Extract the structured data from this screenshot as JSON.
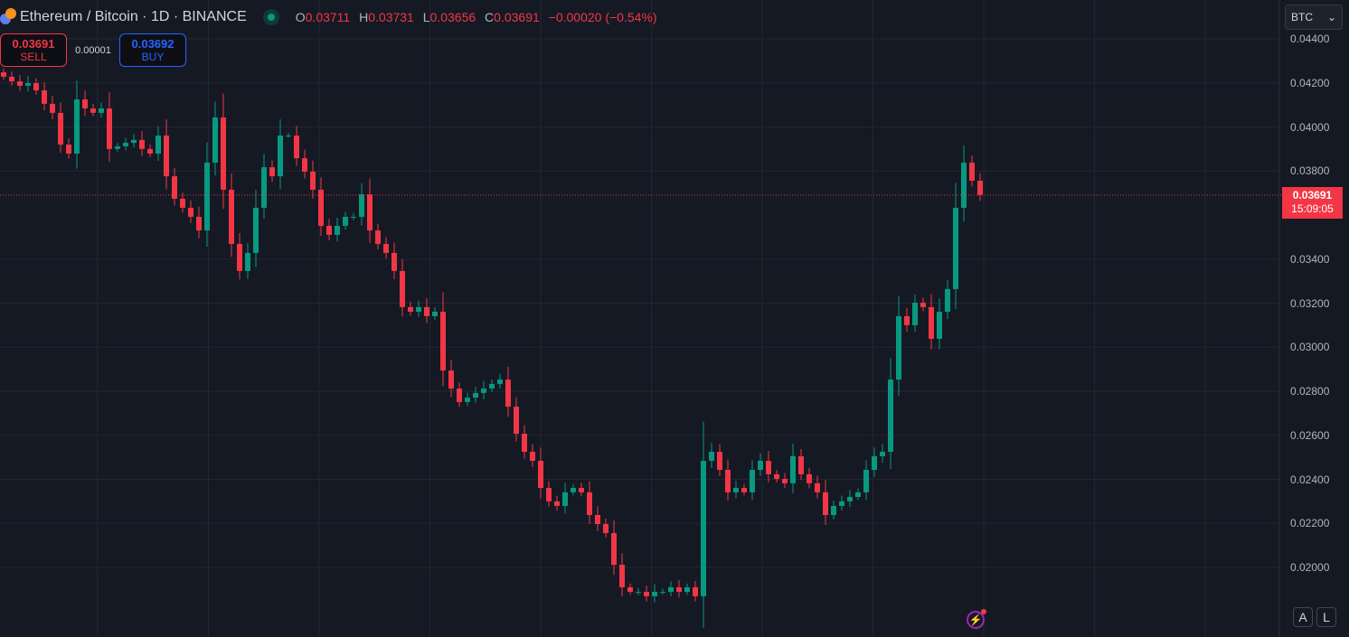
{
  "header": {
    "symbol_title": "Ethereum / Bitcoin · 1D · BINANCE",
    "ohlc": [
      {
        "label": "O",
        "value": "0.03711"
      },
      {
        "label": "H",
        "value": "0.03731"
      },
      {
        "label": "L",
        "value": "0.03656"
      },
      {
        "label": "C",
        "value": "0.03691"
      }
    ],
    "change": "−0.00020 (−0.54%)",
    "icons": {
      "symbol": "eth-btc-icon",
      "status": "market-open-dot-icon"
    }
  },
  "trade": {
    "sell_price": "0.03691",
    "sell_label": "SELL",
    "spread": "0.00001",
    "buy_price": "0.03692",
    "buy_label": "BUY"
  },
  "currency_select": {
    "value": "BTC"
  },
  "last_price": {
    "value": "0.03691",
    "countdown": "15:09:05"
  },
  "bottom_buttons": {
    "auto": "A",
    "log": "L"
  },
  "colors": {
    "up": "#089981",
    "down": "#f23645",
    "background": "#151924",
    "grid": "#222632"
  },
  "chart_data": {
    "type": "candlestick",
    "title": "Ethereum / Bitcoin · 1D · BINANCE",
    "ylim": [
      0.0188,
      0.0448
    ],
    "y_ticks": [
      "0.04400",
      "0.04200",
      "0.04000",
      "0.03800",
      "0.03400",
      "0.03200",
      "0.03000",
      "0.02800",
      "0.02600",
      "0.02400",
      "0.02200",
      "0.02000"
    ],
    "grid": true,
    "last_price_line": 0.03691,
    "closes": [
      0.04228,
      0.04207,
      0.04187,
      0.04199,
      0.04166,
      0.04105,
      0.04064,
      0.0392,
      0.03879,
      0.04125,
      0.04084,
      0.04064,
      0.04084,
      0.039,
      0.03912,
      0.03928,
      0.03941,
      0.039,
      0.03879,
      0.03961,
      0.03776,
      0.03674,
      0.03633,
      0.03592,
      0.0353,
      0.03838,
      0.04043,
      0.03715,
      0.03469,
      0.03346,
      0.03428,
      0.03633,
      0.03817,
      0.03776,
      0.03961,
      0.03961,
      0.03858,
      0.03797,
      0.03715,
      0.03551,
      0.0351,
      0.03551,
      0.03592,
      0.03592,
      0.03694,
      0.0353,
      0.03469,
      0.03428,
      0.03346,
      0.03182,
      0.03161,
      0.03182,
      0.03141,
      0.03161,
      0.02894,
      0.02812,
      0.02751,
      0.02771,
      0.02792,
      0.02812,
      0.02833,
      0.02853,
      0.0273,
      0.02607,
      0.02525,
      0.02484,
      0.02361,
      0.023,
      0.02279,
      0.02341,
      0.02361,
      0.02341,
      0.02238,
      0.02197,
      0.02156,
      0.02012,
      0.0191,
      0.01889,
      0.01889,
      0.01869,
      0.01889,
      0.01889,
      0.0191,
      0.01889,
      0.0191,
      0.01869,
      0.02484,
      0.02525,
      0.02443,
      0.02341,
      0.02361,
      0.02341,
      0.02443,
      0.02484,
      0.02423,
      0.02402,
      0.02382,
      0.02505,
      0.02423,
      0.02382,
      0.02341,
      0.02238,
      0.02279,
      0.023,
      0.0232,
      0.02341,
      0.02443,
      0.02505,
      0.02525,
      0.02853,
      0.03141,
      0.031,
      0.03202,
      0.03182,
      0.03038,
      0.03161,
      0.03264,
      0.03633,
      0.03838,
      0.03756,
      0.03691
    ]
  }
}
